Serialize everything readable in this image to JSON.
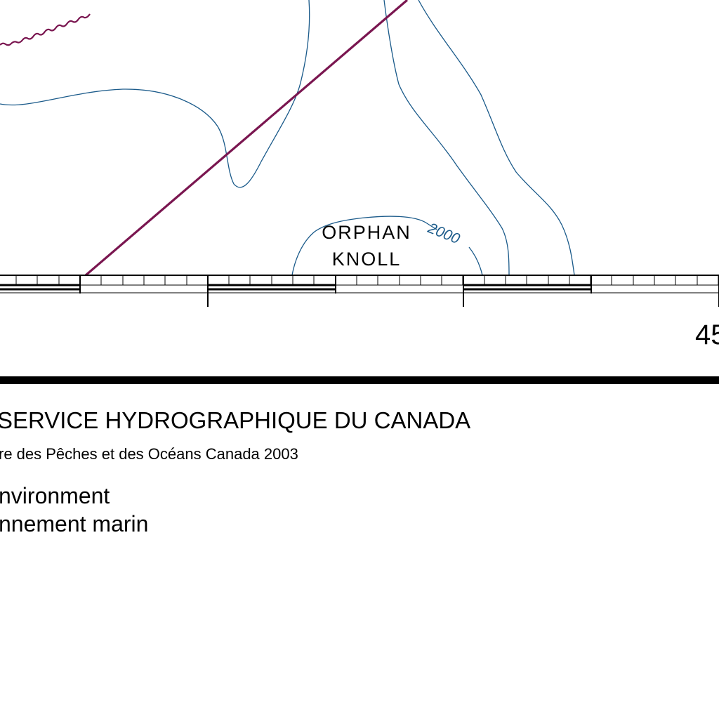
{
  "map": {
    "feature_name_line1": "ORPHAN",
    "feature_name_line2": "KNOLL",
    "depth_contour_label": "2000",
    "longitude_label": "45",
    "colors": {
      "contour": "#1a5a8a",
      "boundary": "#7a1650",
      "neatline": "#000000",
      "background": "#ffffff"
    }
  },
  "footer": {
    "agency_title": "SERVICE HYDROGRAPHIQUE DU CANADA",
    "ministry_line": "re des Pêches et des Océans Canada 2003",
    "subtitle_line1": "nvironment",
    "subtitle_line2": "nnement marin"
  }
}
